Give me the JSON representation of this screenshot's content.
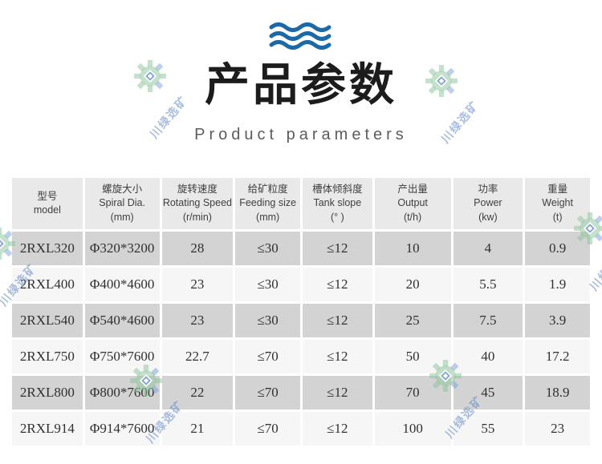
{
  "header": {
    "title": "产品参数",
    "subtitle": "Product parameters"
  },
  "watermark": {
    "text": "川绿选矿"
  },
  "icons": {
    "waves": "three-wavy-lines",
    "gear": "gear-logo"
  },
  "colors": {
    "wave_blue": "#1c69a8",
    "title_black": "#1c1c1c",
    "subtitle_gray": "#5c5c5c",
    "header_row_bg": "#e9e9e9",
    "odd_row_bg": "#d3d3d3",
    "even_row_bg": "#f6f6f6",
    "cell_text": "#303030",
    "watermark_green": "#8ac497",
    "watermark_blue": "#6086cb"
  },
  "table": {
    "columns": [
      {
        "zh": "型号",
        "en": "model",
        "unit": ""
      },
      {
        "zh": "螺旋大小",
        "en": "Spiral Dia.",
        "unit": "(mm)"
      },
      {
        "zh": "旋转速度",
        "en": "Rotating Speed",
        "unit": "(r/min)"
      },
      {
        "zh": "给矿粒度",
        "en": "Feeding size",
        "unit": "(mm)"
      },
      {
        "zh": "槽体倾斜度",
        "en": "Tank slope",
        "unit": "(° )"
      },
      {
        "zh": "产出量",
        "en": "Output",
        "unit": "(t/h)"
      },
      {
        "zh": "功率",
        "en": "Power",
        "unit": "(kw)"
      },
      {
        "zh": "重量",
        "en": "Weight",
        "unit": "(t)"
      }
    ],
    "rows": [
      [
        "2RXL320",
        "Φ320*3200",
        "28",
        "≤30",
        "≤12",
        "10",
        "4",
        "0.9"
      ],
      [
        "2RXL400",
        "Φ400*4600",
        "23",
        "≤30",
        "≤12",
        "20",
        "5.5",
        "1.9"
      ],
      [
        "2RXL540",
        "Φ540*4600",
        "23",
        "≤30",
        "≤12",
        "25",
        "7.5",
        "3.9"
      ],
      [
        "2RXL750",
        "Φ750*7600",
        "22.7",
        "≤70",
        "≤12",
        "50",
        "40",
        "17.2"
      ],
      [
        "2RXL800",
        "Φ800*7600",
        "22",
        "≤70",
        "≤12",
        "70",
        "45",
        "18.9"
      ],
      [
        "2RXL914",
        "Φ914*7600",
        "21",
        "≤70",
        "≤12",
        "100",
        "55",
        "23"
      ]
    ]
  }
}
